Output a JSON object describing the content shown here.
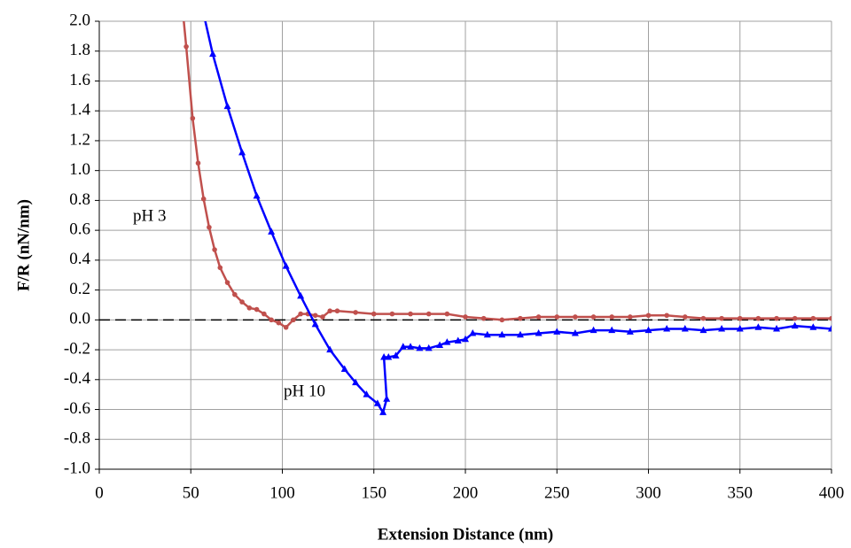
{
  "chart_data": {
    "type": "line",
    "x_label": "Extension Distance (nm)",
    "y_label": "F/R (nN/nm)",
    "xlim": [
      0,
      400
    ],
    "xticks": [
      0,
      50,
      100,
      150,
      200,
      250,
      300,
      350,
      400
    ],
    "ylim": [
      -1,
      2
    ],
    "yticks": [
      {
        "value": 2,
        "label": "2.0"
      },
      1.8,
      1.6,
      1.4,
      1.2,
      {
        "value": 1,
        "label": "1.0"
      },
      0.8,
      0.6,
      0.4,
      0.2,
      {
        "value": 0,
        "label": "0.0"
      },
      -0.2,
      -0.4,
      -0.6,
      -0.8,
      {
        "value": -1,
        "label": "-1.0"
      }
    ],
    "grid": true,
    "zero_line": true,
    "series": [
      {
        "name": "pH 3",
        "color": "#c0504d",
        "marker": "circle",
        "x": [
          45,
          47.5,
          51,
          54,
          57,
          60,
          63,
          66,
          70,
          74,
          78,
          82,
          86,
          90,
          94,
          98,
          102,
          106,
          110,
          114,
          118,
          122,
          126,
          130,
          140,
          150,
          160,
          170,
          180,
          190,
          200,
          210,
          220,
          230,
          240,
          250,
          260,
          270,
          280,
          290,
          300,
          310,
          320,
          330,
          340,
          350,
          360,
          370,
          380,
          390,
          400
        ],
        "values": [
          2.15,
          1.83,
          1.35,
          1.05,
          0.81,
          0.62,
          0.47,
          0.35,
          0.25,
          0.17,
          0.12,
          0.08,
          0.07,
          0.04,
          0.0,
          -0.02,
          -0.05,
          0.0,
          0.04,
          0.04,
          0.03,
          0.02,
          0.06,
          0.06,
          0.05,
          0.04,
          0.04,
          0.04,
          0.04,
          0.04,
          0.02,
          0.01,
          0.0,
          0.01,
          0.02,
          0.02,
          0.02,
          0.02,
          0.02,
          0.02,
          0.03,
          0.03,
          0.02,
          0.01,
          0.01,
          0.01,
          0.01,
          0.01,
          0.01,
          0.01,
          0.01
        ]
      },
      {
        "name": "pH 10",
        "color": "#0000ff",
        "marker": "triangle",
        "x": [
          57,
          62,
          70,
          78,
          86,
          94,
          102,
          110,
          118,
          126,
          134,
          140,
          146,
          152,
          155,
          157,
          155.5,
          158,
          162,
          166,
          170,
          175,
          180,
          186,
          190,
          196,
          200,
          204,
          212,
          220,
          230,
          240,
          250,
          260,
          270,
          280,
          290,
          300,
          310,
          320,
          330,
          340,
          350,
          360,
          370,
          380,
          390,
          400
        ],
        "values": [
          2.05,
          1.78,
          1.43,
          1.12,
          0.83,
          0.59,
          0.36,
          0.16,
          -0.03,
          -0.2,
          -0.33,
          -0.42,
          -0.5,
          -0.56,
          -0.62,
          -0.53,
          -0.25,
          -0.25,
          -0.24,
          -0.18,
          -0.18,
          -0.19,
          -0.19,
          -0.17,
          -0.15,
          -0.14,
          -0.13,
          -0.09,
          -0.1,
          -0.1,
          -0.1,
          -0.09,
          -0.08,
          -0.09,
          -0.07,
          -0.07,
          -0.08,
          -0.07,
          -0.06,
          -0.06,
          -0.07,
          -0.06,
          -0.06,
          -0.05,
          -0.06,
          -0.04,
          -0.05,
          -0.06
        ]
      }
    ]
  }
}
